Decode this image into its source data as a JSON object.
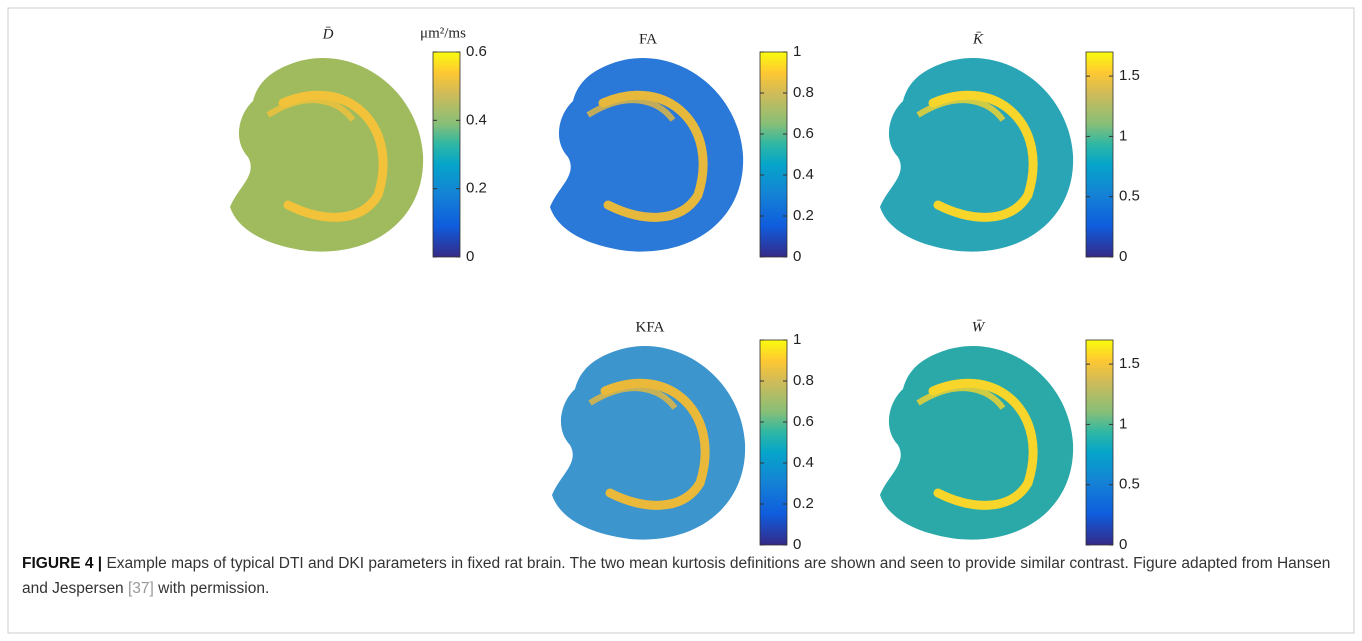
{
  "panels": [
    {
      "title": "D̄",
      "unit": "μm²/ms",
      "clim": [
        0,
        0.6
      ],
      "ticks": [
        0,
        0.2,
        0.4,
        0.6
      ]
    },
    {
      "title": "FA",
      "clim": [
        0,
        1
      ],
      "ticks": [
        0,
        0.2,
        0.4,
        0.6,
        0.8,
        1
      ]
    },
    {
      "title": "K̄",
      "clim": [
        0,
        1.7
      ],
      "ticks": [
        0,
        0.5,
        1,
        1.5
      ]
    },
    {
      "title": "KFA",
      "clim": [
        0,
        1
      ],
      "ticks": [
        0,
        0.2,
        0.4,
        0.6,
        0.8,
        1
      ]
    },
    {
      "title": "W̄",
      "clim": [
        0,
        1.7
      ],
      "ticks": [
        0,
        0.5,
        1,
        1.5
      ]
    }
  ],
  "caption": {
    "label": "FIGURE 4 |",
    "text": "Example maps of typical DTI and DKI parameters in fixed rat brain. The two mean kurtosis definitions are shown and seen to provide similar contrast. Figure adapted from Hansen and Jespersen",
    "ref": "[37]",
    "text_end": "with permission."
  }
}
